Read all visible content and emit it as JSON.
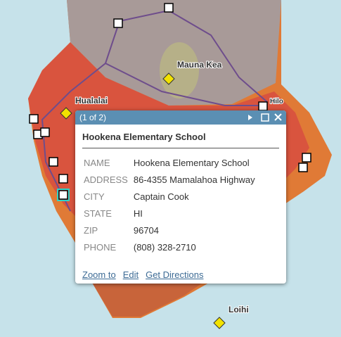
{
  "map": {
    "labels": {
      "mauna_kea": "Mauna Kea",
      "hualalai": "Hualalai",
      "hilo": "Hilo",
      "loihi": "Loihi"
    }
  },
  "popup": {
    "pager": "(1 of 2)",
    "title": "Hookena Elementary School",
    "fields": [
      {
        "label": "NAME",
        "value": "Hookena Elementary School"
      },
      {
        "label": "ADDRESS",
        "value": "86-4355 Mamalahoa Highway"
      },
      {
        "label": "CITY",
        "value": "Captain Cook"
      },
      {
        "label": "STATE",
        "value": "HI"
      },
      {
        "label": "ZIP",
        "value": "96704"
      },
      {
        "label": "PHONE",
        "value": "(808) 328-2710"
      }
    ],
    "actions": [
      "Zoom to",
      "Edit",
      "Get Directions"
    ]
  }
}
